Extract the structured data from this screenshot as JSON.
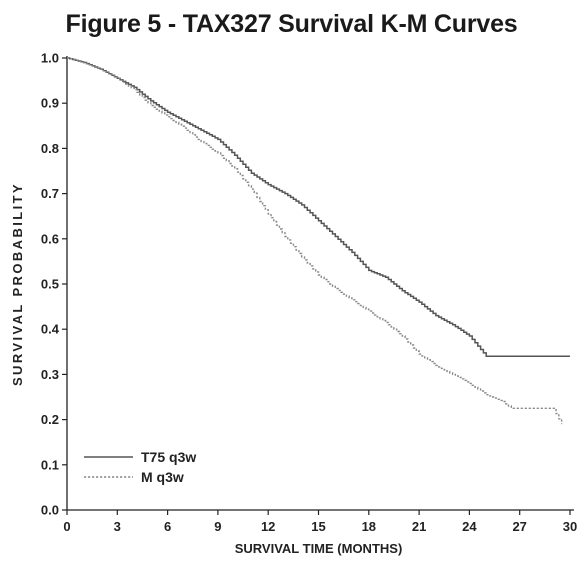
{
  "chart_data": {
    "type": "line",
    "title": "Figure 5 - TAX327 Survival K-M Curves",
    "xlabel": "SURVIVAL TIME (MONTHS)",
    "ylabel": "SURVIVAL PROBABILITY",
    "xlim": [
      0,
      30
    ],
    "ylim": [
      0,
      1.0
    ],
    "x_ticks": [
      0,
      3,
      6,
      9,
      12,
      15,
      18,
      21,
      24,
      27,
      30
    ],
    "y_ticks": [
      0.0,
      0.1,
      0.2,
      0.3,
      0.4,
      0.5,
      0.6,
      0.7,
      0.8,
      0.9,
      1.0
    ],
    "x_tick_labels": [
      "0",
      "3",
      "6",
      "9",
      "12",
      "15",
      "18",
      "21",
      "24",
      "27",
      "30"
    ],
    "y_tick_labels": [
      "0.0",
      "0.1",
      "0.2",
      "0.3",
      "0.4",
      "0.5",
      "0.6",
      "0.7",
      "0.8",
      "0.9",
      "1.0"
    ],
    "grid": false,
    "legend_position": "bottom-left",
    "series": [
      {
        "name": "T75 q3w",
        "style": "solid",
        "color": "#555555",
        "x": [
          0,
          1,
          2,
          3,
          4,
          5,
          6,
          7,
          8,
          9,
          10,
          11,
          12,
          13,
          14,
          15,
          16,
          17,
          18,
          19,
          20,
          21,
          22,
          23,
          24,
          25,
          26,
          27,
          28,
          29,
          30
        ],
        "y": [
          1.0,
          0.99,
          0.975,
          0.955,
          0.935,
          0.905,
          0.88,
          0.86,
          0.84,
          0.82,
          0.785,
          0.745,
          0.72,
          0.7,
          0.675,
          0.64,
          0.605,
          0.57,
          0.53,
          0.515,
          0.485,
          0.46,
          0.43,
          0.41,
          0.385,
          0.34,
          0.34,
          0.34,
          0.34,
          0.34,
          0.34
        ]
      },
      {
        "name": "M q3w",
        "style": "dashed",
        "color": "#888888",
        "x": [
          0,
          1,
          2,
          3,
          4,
          5,
          6,
          7,
          8,
          9,
          10,
          11,
          12,
          13,
          14,
          15,
          16,
          17,
          18,
          19,
          20,
          21,
          22,
          23,
          24,
          25,
          26,
          26.5,
          27,
          28,
          29,
          29.5
        ],
        "y": [
          1.0,
          0.99,
          0.975,
          0.955,
          0.93,
          0.895,
          0.87,
          0.845,
          0.815,
          0.79,
          0.755,
          0.71,
          0.655,
          0.605,
          0.56,
          0.52,
          0.49,
          0.465,
          0.44,
          0.415,
          0.385,
          0.345,
          0.32,
          0.3,
          0.28,
          0.255,
          0.24,
          0.225,
          0.225,
          0.225,
          0.225,
          0.19
        ]
      }
    ]
  }
}
